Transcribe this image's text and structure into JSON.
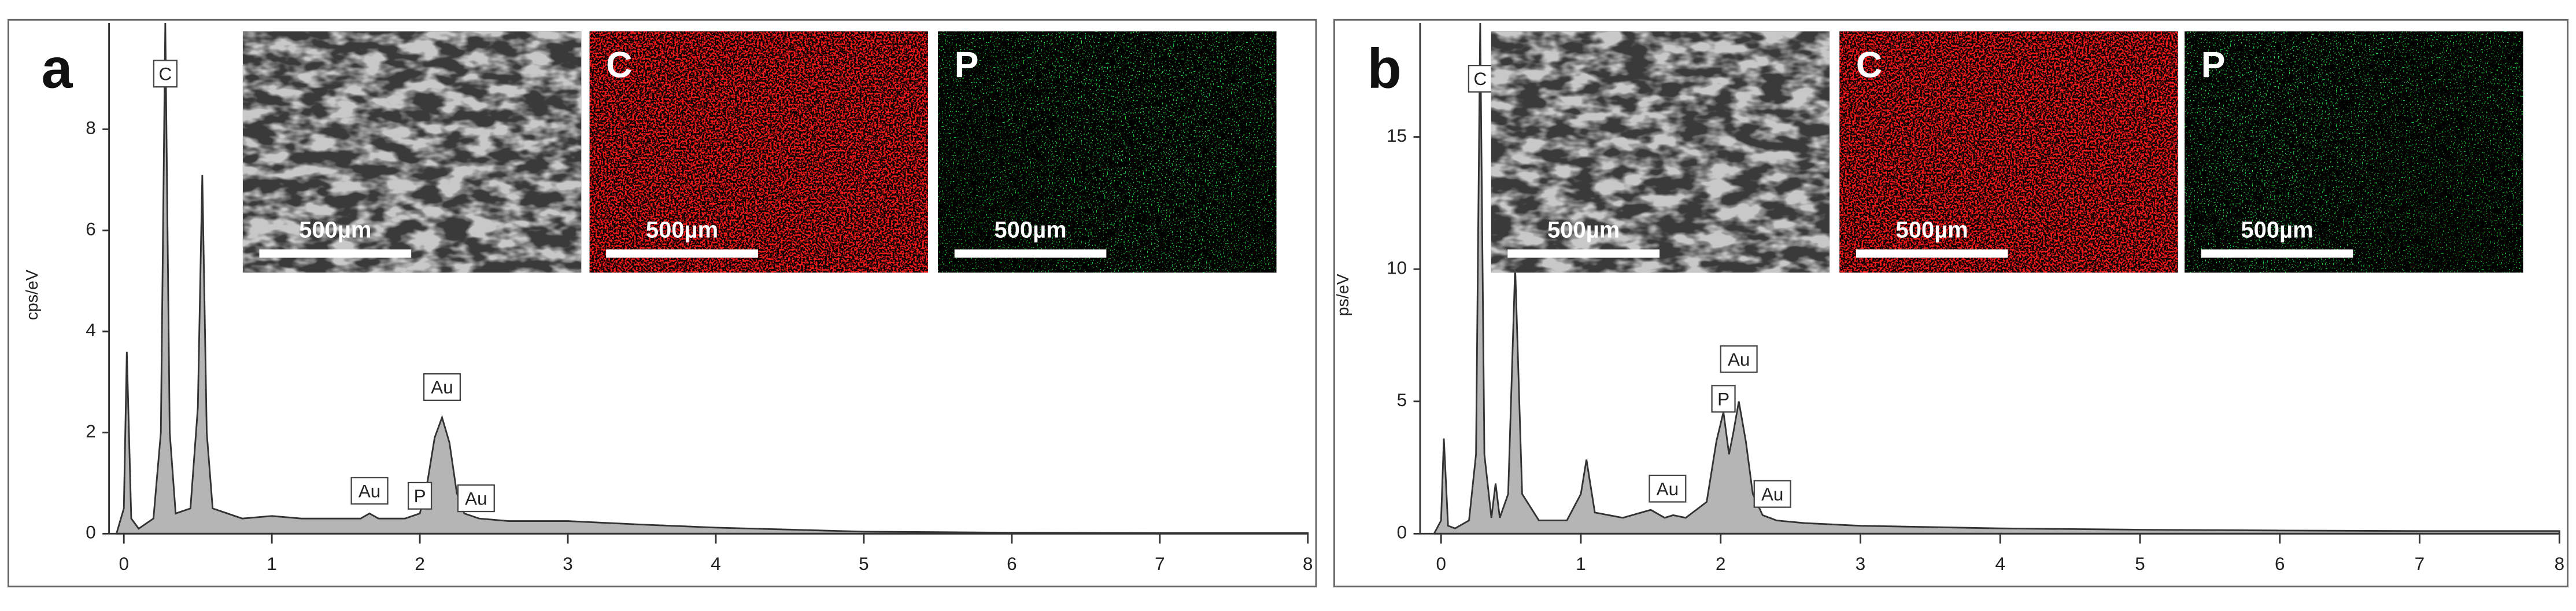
{
  "chart_data": [
    {
      "type": "area",
      "label": "a",
      "ylabel": "cps/eV",
      "color": "#b5b5b5",
      "line_color": "#333333",
      "xlim": [
        -0.1,
        8
      ],
      "ylim": [
        0,
        10.1
      ],
      "xticks": [
        0,
        1,
        2,
        3,
        4,
        5,
        6,
        7,
        8
      ],
      "yticks": [
        0,
        2,
        4,
        6,
        8
      ],
      "x": [
        -0.05,
        0,
        0.02,
        0.05,
        0.1,
        0.2,
        0.25,
        0.28,
        0.31,
        0.35,
        0.45,
        0.5,
        0.53,
        0.56,
        0.6,
        0.8,
        1.0,
        1.2,
        1.4,
        1.6,
        1.66,
        1.72,
        1.9,
        2.0,
        2.05,
        2.1,
        2.15,
        2.2,
        2.25,
        2.3,
        2.4,
        2.6,
        3.0,
        3.5,
        4.0,
        4.5,
        5.0,
        5.5,
        6,
        7,
        8
      ],
      "values": [
        0,
        0.5,
        3.6,
        0.3,
        0.1,
        0.3,
        2.0,
        10.1,
        2.0,
        0.4,
        0.5,
        2.5,
        7.1,
        2.0,
        0.5,
        0.3,
        0.35,
        0.3,
        0.3,
        0.3,
        0.4,
        0.3,
        0.3,
        0.4,
        1.0,
        1.9,
        2.3,
        1.8,
        0.8,
        0.4,
        0.3,
        0.25,
        0.25,
        0.18,
        0.12,
        0.08,
        0.04,
        0.03,
        0.02,
        0.01,
        0.01
      ],
      "annotations": [
        {
          "text": "C",
          "x": 0.28,
          "y": 9.1
        },
        {
          "text": "Au",
          "x": 1.66,
          "y": 0.85
        },
        {
          "text": "P",
          "x": 2.0,
          "y": 0.75
        },
        {
          "text": "Au",
          "x": 2.15,
          "y": 2.9
        },
        {
          "text": "Au",
          "x": 2.38,
          "y": 0.7
        }
      ],
      "insets": [
        {
          "scale_bar": "500µm",
          "color": "#c8c8c8"
        },
        {
          "label": "C",
          "scale_bar": "500µm",
          "color": "#ff1a1a"
        },
        {
          "label": "P",
          "scale_bar": "500µm",
          "color": "#22dd44"
        }
      ]
    },
    {
      "type": "area",
      "label": "b",
      "ylabel": "ps/eV",
      "color": "#b5b5b5",
      "line_color": "#333333",
      "xlim": [
        -0.15,
        8
      ],
      "ylim": [
        0,
        19.3
      ],
      "xticks": [
        0,
        1,
        2,
        3,
        4,
        5,
        6,
        7,
        8
      ],
      "yticks": [
        0,
        5,
        10,
        15
      ],
      "x": [
        -0.05,
        0,
        0.02,
        0.05,
        0.1,
        0.2,
        0.25,
        0.28,
        0.31,
        0.36,
        0.39,
        0.42,
        0.48,
        0.53,
        0.58,
        0.7,
        0.9,
        1.0,
        1.04,
        1.1,
        1.3,
        1.5,
        1.6,
        1.66,
        1.75,
        1.9,
        1.97,
        2.02,
        2.06,
        2.09,
        2.13,
        2.18,
        2.23,
        2.3,
        2.4,
        2.6,
        3,
        3.5,
        4,
        5,
        6,
        7,
        8
      ],
      "values": [
        0,
        0.5,
        3.6,
        0.3,
        0.2,
        0.5,
        3,
        19.3,
        3,
        0.6,
        1.9,
        0.6,
        1.5,
        10.1,
        1.5,
        0.5,
        0.5,
        1.5,
        2.8,
        0.8,
        0.6,
        0.9,
        0.6,
        0.7,
        0.6,
        1.2,
        3.5,
        4.6,
        3.0,
        3.8,
        5.0,
        3.5,
        1.5,
        0.7,
        0.5,
        0.4,
        0.3,
        0.25,
        0.2,
        0.15,
        0.12,
        0.1,
        0.1
      ],
      "annotations": [
        {
          "text": "C",
          "x": 0.28,
          "y": 17.2
        },
        {
          "text": "Au",
          "x": 1.62,
          "y": 1.7
        },
        {
          "text": "P",
          "x": 2.02,
          "y": 5.1
        },
        {
          "text": "Au",
          "x": 2.13,
          "y": 6.6
        },
        {
          "text": "Au",
          "x": 2.37,
          "y": 1.5
        }
      ],
      "insets": [
        {
          "scale_bar": "500µm",
          "color": "#c8c8c8"
        },
        {
          "label": "C",
          "scale_bar": "500µm",
          "color": "#ff1a1a"
        },
        {
          "label": "P",
          "scale_bar": "500µm",
          "color": "#22dd44"
        }
      ]
    }
  ]
}
